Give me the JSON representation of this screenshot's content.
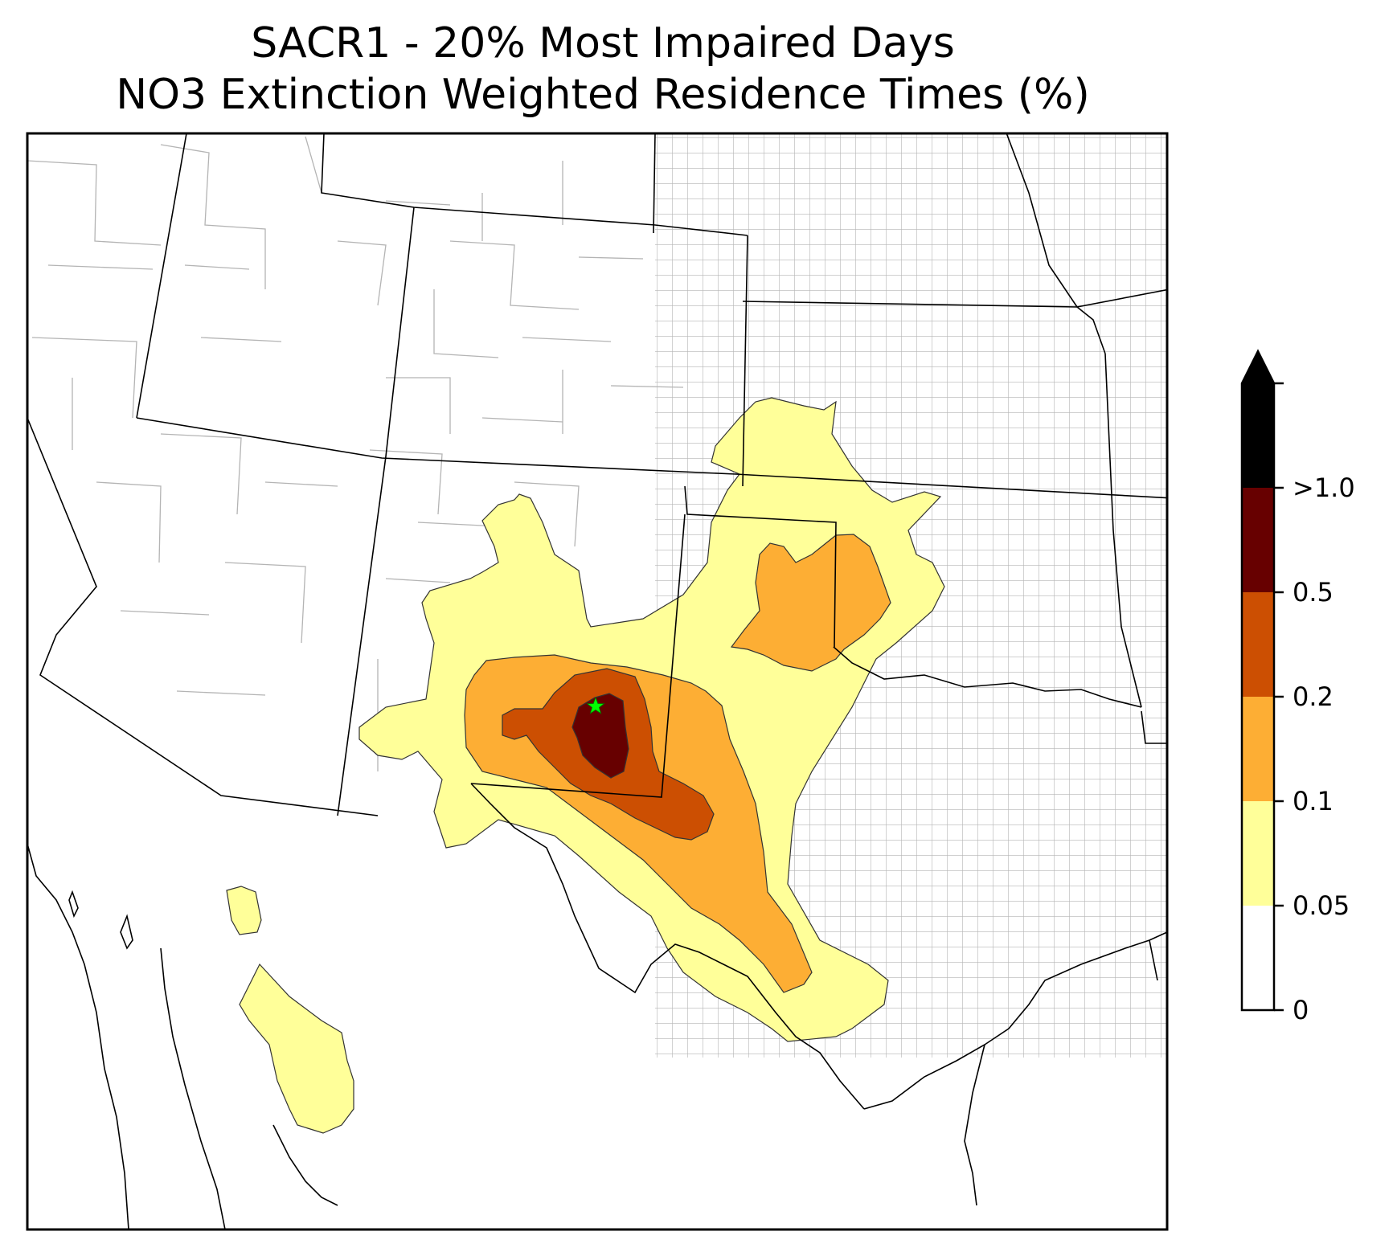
{
  "title": {
    "line1": "SACR1 - 20% Most Impaired Days",
    "line2": "NO3 Extinction Weighted Residence Times (%)"
  },
  "colorbar": {
    "ticks": [
      "0",
      "0.05",
      "0.1",
      "0.2",
      "0.5",
      ">1.0"
    ],
    "colors": [
      "#ffffff",
      "#ffff99",
      "#fdae34",
      "#cc4f02",
      "#670000",
      "#000000"
    ],
    "extend": "max"
  },
  "map": {
    "boundary_color": "#000000",
    "county_color": "#aaaaaa",
    "marker_color": "#00ff00",
    "marker_icon": "star-icon"
  }
}
